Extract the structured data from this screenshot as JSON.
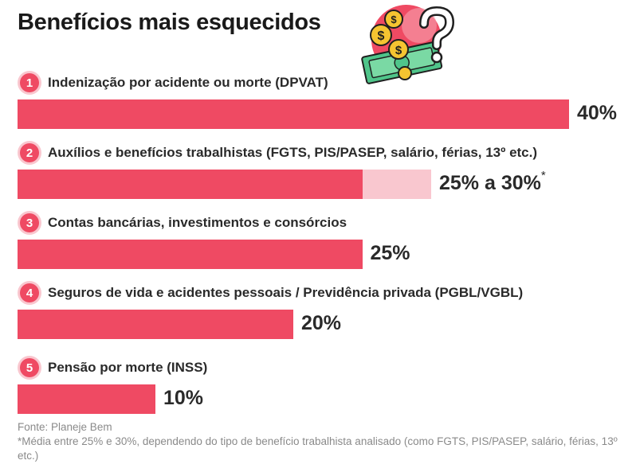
{
  "title": "Benefícios mais esquecidos",
  "chart_data": {
    "type": "bar",
    "orientation": "horizontal",
    "title": "Benefícios mais esquecidos",
    "categories": [
      "Indenização por acidente ou morte (DPVAT)",
      "Auxílios e benefícios trabalhistas (FGTS, PIS/PASEP, salário, férias, 13º etc.)",
      "Contas bancárias, investimentos e consórcios",
      "Seguros de vida e acidentes pessoais / Previdência privada (PGBL/VGBL)",
      "Pensão por morte (INSS)"
    ],
    "numbers": [
      "1",
      "2",
      "3",
      "4",
      "5"
    ],
    "values": [
      40,
      25,
      25,
      20,
      10
    ],
    "range_max": [
      null,
      30,
      null,
      null,
      null
    ],
    "value_labels": [
      "40%",
      "25% a 30%",
      "25%",
      "20%",
      "10%"
    ],
    "value_marks": [
      "",
      "*",
      "",
      "",
      ""
    ],
    "xlim": [
      0,
      40
    ],
    "colors": {
      "bar": "#ef4a63",
      "range": "#f9c7cf",
      "badge": "#ef4a63"
    }
  },
  "footer": {
    "source": "Fonte: Planeje Bem",
    "note": "*Média entre 25% e 30%, dependendo do tipo de benefício trabalhista analisado (como FGTS, PIS/PASEP, salário, férias, 13º etc.)"
  },
  "illustration": {
    "icon": "money-question-icon"
  }
}
